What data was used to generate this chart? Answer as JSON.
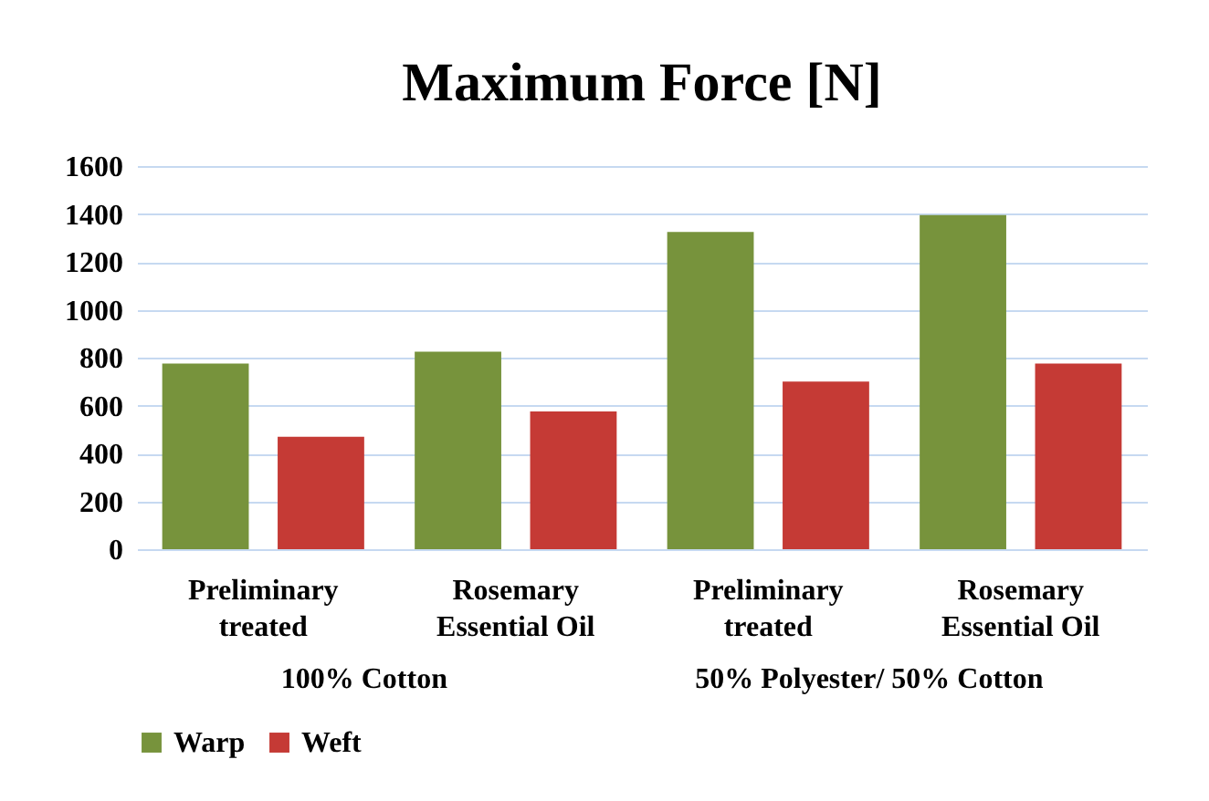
{
  "chart_data": {
    "type": "bar",
    "title": "Maximum Force  [N]",
    "categories": [
      "Preliminary treated",
      "Rosemary Essential Oil",
      "Preliminary treated",
      "Rosemary Essential Oil"
    ],
    "series": [
      {
        "name": "Warp",
        "color": "#77933c",
        "values": [
          775,
          825,
          1325,
          1395
        ]
      },
      {
        "name": "Weft",
        "color": "#c53a35",
        "values": [
          470,
          575,
          700,
          775
        ]
      }
    ],
    "annotations": [
      "100% Cotton",
      "50% Polyester/ 50% Cotton"
    ],
    "ylim": [
      0,
      1600
    ],
    "yticks": [
      0,
      200,
      400,
      600,
      800,
      1000,
      1200,
      1400,
      1600
    ],
    "grid": "y",
    "legend": "bottom"
  }
}
